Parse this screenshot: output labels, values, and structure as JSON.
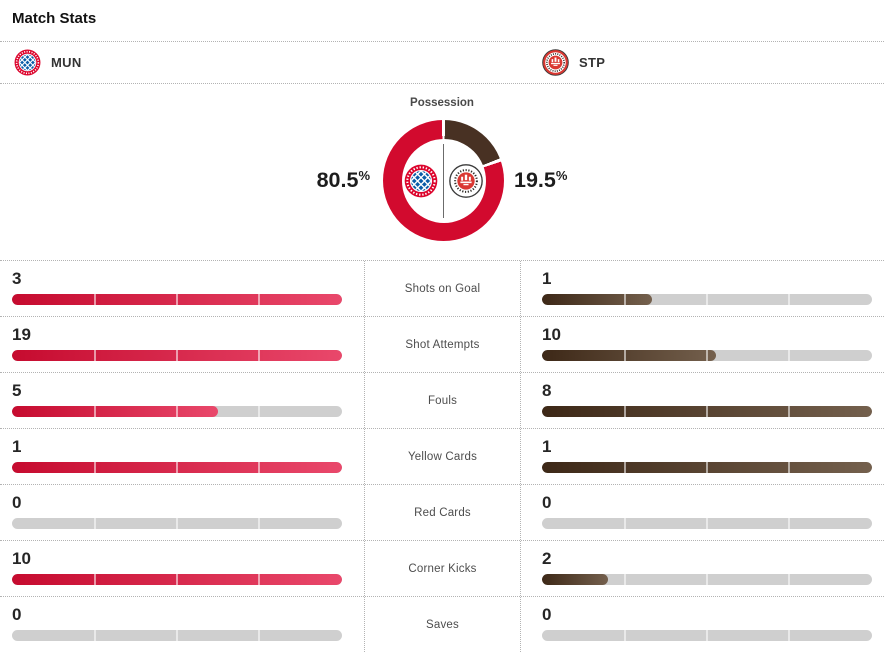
{
  "page": {
    "title": "Match Stats"
  },
  "teams": {
    "home": {
      "abbr": "MUN",
      "crest": "bayern-munich-crest-icon"
    },
    "away": {
      "abbr": "STP",
      "crest": "st-pauli-crest-icon"
    }
  },
  "possession": {
    "label": "Possession",
    "home_pct": "80.5",
    "away_pct": "19.5",
    "pct_symbol": "%",
    "home_value": 80.5,
    "away_value": 19.5
  },
  "colors": {
    "home_donut": "#d20a2e",
    "away_donut": "#483123",
    "home_bar_from": "#c60b2f",
    "home_bar_to": "#e9486b",
    "away_bar_from": "#3d2817",
    "away_bar_to": "#74604d",
    "track": "#cfcfcf"
  },
  "stats": [
    {
      "label": "Shots on Goal",
      "home": "3",
      "away": "1",
      "home_fill": 100,
      "away_fill": 33.3
    },
    {
      "label": "Shot Attempts",
      "home": "19",
      "away": "10",
      "home_fill": 100,
      "away_fill": 52.6
    },
    {
      "label": "Fouls",
      "home": "5",
      "away": "8",
      "home_fill": 62.5,
      "away_fill": 100
    },
    {
      "label": "Yellow Cards",
      "home": "1",
      "away": "1",
      "home_fill": 100,
      "away_fill": 100
    },
    {
      "label": "Red Cards",
      "home": "0",
      "away": "0",
      "home_fill": 0,
      "away_fill": 0
    },
    {
      "label": "Corner Kicks",
      "home": "10",
      "away": "2",
      "home_fill": 100,
      "away_fill": 20
    },
    {
      "label": "Saves",
      "home": "0",
      "away": "0",
      "home_fill": 0,
      "away_fill": 0
    }
  ],
  "chart_data": [
    {
      "type": "pie",
      "title": "Possession",
      "labels": [
        "MUN",
        "STP"
      ],
      "values": [
        80.5,
        19.5
      ],
      "colors": [
        "#d20a2e",
        "#483123"
      ],
      "hole": 0.69,
      "start_angle": "top",
      "direction": "clockwise"
    },
    {
      "type": "bar",
      "title": "Match Stats",
      "categories": [
        "Shots on Goal",
        "Shot Attempts",
        "Fouls",
        "Yellow Cards",
        "Red Cards",
        "Corner Kicks",
        "Saves"
      ],
      "series": [
        {
          "name": "MUN",
          "values": [
            3,
            19,
            5,
            1,
            0,
            10,
            0
          ]
        },
        {
          "name": "STP",
          "values": [
            1,
            10,
            8,
            1,
            0,
            2,
            0
          ]
        }
      ],
      "note": "each bar scaled relative to the max of the two teams per category"
    }
  ]
}
